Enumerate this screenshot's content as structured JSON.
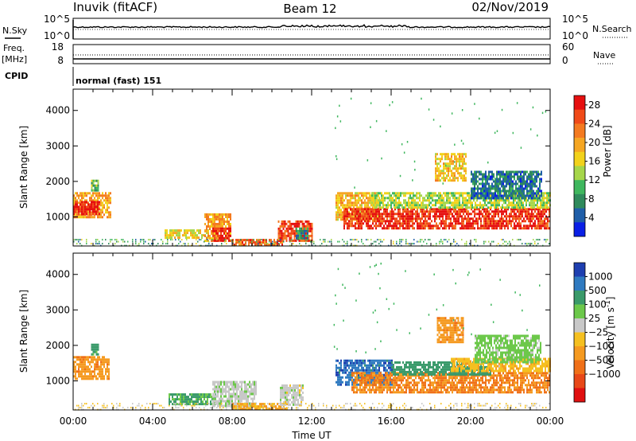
{
  "header": {
    "station": "Inuvik (fitACF)",
    "beam": "Beam 12",
    "date": "02/Nov/2019"
  },
  "top_panels": {
    "nsky_label": "N.Sky",
    "nsky_ticks": [
      "10^5",
      "10^0"
    ],
    "nsearch_ticks": [
      "10^5",
      "10^0"
    ],
    "nsearch_label": "N.Search",
    "freq_label": "Freq.",
    "freq_unit": "[MHz]",
    "freq_ticks": [
      "18",
      "8"
    ],
    "nave_ticks": [
      "60",
      "0"
    ],
    "nave_label": "Nave",
    "cpid_label": "CPID",
    "cpid_value": "normal (fast) 151"
  },
  "chart_data": [
    {
      "type": "heatmap",
      "panel": "power",
      "ylabel": "Slant Range [km]",
      "xlabel": "Time UT",
      "x_ticks": [
        "00:00",
        "04:00",
        "08:00",
        "12:00",
        "16:00",
        "20:00",
        "00:00"
      ],
      "xlim_hours": [
        0,
        24
      ],
      "y_ticks": [
        1000,
        2000,
        3000,
        4000
      ],
      "ylim": [
        180,
        4600
      ],
      "colorbar": {
        "label": "Power [dB]",
        "ticks": [
          4,
          8,
          12,
          16,
          20,
          24,
          28
        ],
        "range": [
          0,
          30
        ],
        "colors": [
          "#0a1fe6",
          "#1f5ea8",
          "#2f8a5c",
          "#3fb75e",
          "#a6d64a",
          "#f2d21b",
          "#f5a623",
          "#f47a20",
          "#f04a18",
          "#e61010"
        ]
      },
      "regions": [
        {
          "t0": 0.0,
          "t1": 1.9,
          "r0": 1000,
          "r1": 1700,
          "v": 20
        },
        {
          "t0": 0.0,
          "t1": 1.3,
          "r0": 1100,
          "r1": 1450,
          "v": 28
        },
        {
          "t0": 0.9,
          "t1": 1.3,
          "r0": 1750,
          "r1": 2050,
          "v": 12
        },
        {
          "t0": 4.6,
          "t1": 6.8,
          "r0": 400,
          "r1": 650,
          "v": 16
        },
        {
          "t0": 6.6,
          "t1": 7.9,
          "r0": 300,
          "r1": 1100,
          "v": 20
        },
        {
          "t0": 7.0,
          "t1": 7.9,
          "r0": 350,
          "r1": 700,
          "v": 28
        },
        {
          "t0": 8.0,
          "t1": 10.5,
          "r0": 220,
          "r1": 380,
          "v": 24
        },
        {
          "t0": 10.3,
          "t1": 12.0,
          "r0": 300,
          "r1": 900,
          "v": 26
        },
        {
          "t0": 11.2,
          "t1": 11.8,
          "r0": 400,
          "r1": 700,
          "v": 8
        },
        {
          "t0": 13.2,
          "t1": 15.4,
          "r0": 900,
          "r1": 1700,
          "v": 18
        },
        {
          "t0": 13.6,
          "t1": 24.0,
          "r0": 650,
          "r1": 1250,
          "v": 27
        },
        {
          "t0": 15.0,
          "t1": 24.0,
          "r0": 1250,
          "r1": 1700,
          "v": 14
        },
        {
          "t0": 18.2,
          "t1": 19.8,
          "r0": 2000,
          "r1": 2800,
          "v": 18
        },
        {
          "t0": 20.0,
          "t1": 23.6,
          "r0": 1500,
          "r1": 2300,
          "v": 6
        }
      ],
      "ground_band": {
        "r0": 180,
        "r1": 380,
        "v": 10
      }
    },
    {
      "type": "heatmap",
      "panel": "velocity",
      "ylabel": "Slant Range [km]",
      "xlabel": "Time UT",
      "x_ticks": [
        "00:00",
        "04:00",
        "08:00",
        "12:00",
        "16:00",
        "20:00",
        "00:00"
      ],
      "xlim_hours": [
        0,
        24
      ],
      "y_ticks": [
        1000,
        2000,
        3000,
        4000
      ],
      "ylim": [
        180,
        4600
      ],
      "colorbar": {
        "label": "Velocity [m s^-1]",
        "ticks": [
          "1000",
          "500",
          "100",
          "25",
          "−25",
          "−100",
          "−500",
          "−1000"
        ],
        "colors": [
          "#1e3fb0",
          "#2f7ac0",
          "#3a9a6a",
          "#6cc84a",
          "#c8c8c8",
          "#f5c020",
          "#f59a20",
          "#f07018",
          "#e84818",
          "#e01010"
        ]
      },
      "regions": [
        {
          "t0": 0.0,
          "t1": 1.8,
          "r0": 1050,
          "r1": 1700,
          "v": -400
        },
        {
          "t0": 0.9,
          "t1": 1.3,
          "r0": 1750,
          "r1": 2050,
          "v": 150
        },
        {
          "t0": 4.8,
          "t1": 7.2,
          "r0": 350,
          "r1": 650,
          "v": 120
        },
        {
          "t0": 7.0,
          "t1": 9.2,
          "r0": 300,
          "r1": 1000,
          "v": 10
        },
        {
          "t0": 8.0,
          "t1": 10.8,
          "r0": 220,
          "r1": 380,
          "v": -120
        },
        {
          "t0": 10.4,
          "t1": 11.6,
          "r0": 300,
          "r1": 900,
          "v": 0
        },
        {
          "t0": 13.2,
          "t1": 16.0,
          "r0": 900,
          "r1": 1600,
          "v": 800
        },
        {
          "t0": 14.0,
          "t1": 24.0,
          "r0": 700,
          "r1": 1250,
          "v": -500
        },
        {
          "t0": 16.0,
          "t1": 21.0,
          "r0": 1150,
          "r1": 1550,
          "v": 300
        },
        {
          "t0": 19.0,
          "t1": 24.0,
          "r0": 1300,
          "r1": 1650,
          "v": -80
        },
        {
          "t0": 18.3,
          "t1": 19.6,
          "r0": 2100,
          "r1": 2800,
          "v": -400
        },
        {
          "t0": 20.2,
          "t1": 23.5,
          "r0": 1550,
          "r1": 2300,
          "v": 50
        }
      ],
      "ground_band": {
        "r0": 180,
        "r1": 380,
        "v": 0
      }
    }
  ]
}
